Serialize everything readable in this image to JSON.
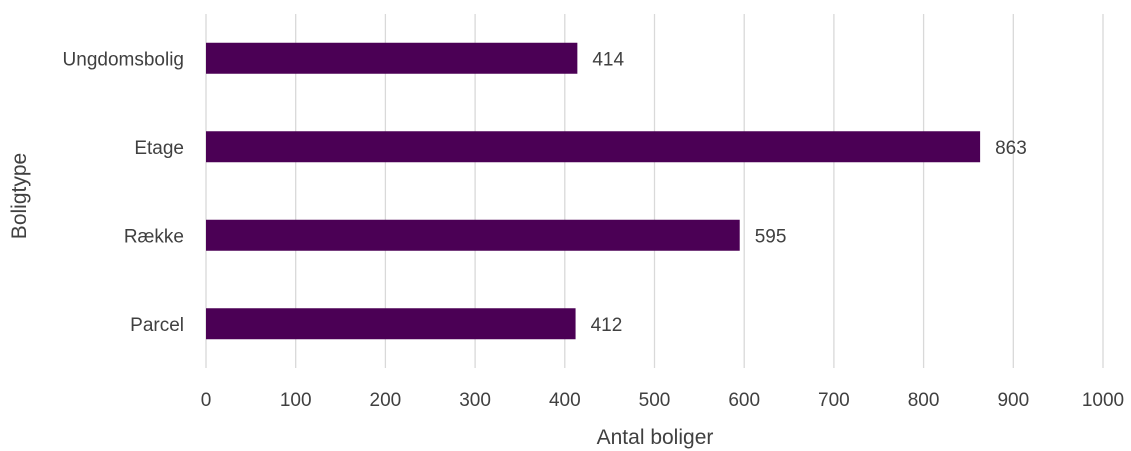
{
  "chart_data": {
    "type": "bar",
    "orientation": "horizontal",
    "categories": [
      "Ungdomsbolig",
      "Etage",
      "Række",
      "Parcel"
    ],
    "values": [
      414,
      863,
      595,
      412
    ],
    "title": "",
    "xlabel": "Antal boliger",
    "ylabel": "Boligtype",
    "xlim": [
      0,
      1000
    ],
    "x_ticks": [
      0,
      100,
      200,
      300,
      400,
      500,
      600,
      700,
      800,
      900,
      1000
    ],
    "grid": "vertical",
    "data_labels": true,
    "bar_color": "#4b0055"
  }
}
